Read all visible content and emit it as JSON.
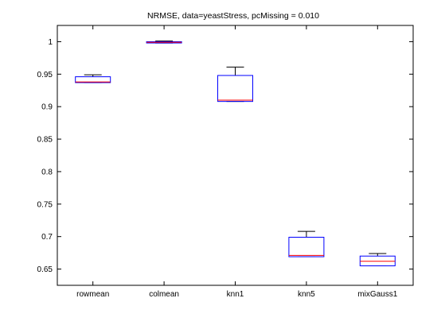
{
  "chart_data": {
    "type": "box",
    "title": "NRMSE, data=yeastStress, pcMissing = 0.010",
    "xlabel": "",
    "ylabel": "",
    "ylim": [
      0.625,
      1.025
    ],
    "yticks": [
      0.65,
      0.7,
      0.75,
      0.8,
      0.85,
      0.9,
      0.95,
      1
    ],
    "ytick_labels": [
      "0.65",
      "0.7",
      "0.75",
      "0.8",
      "0.85",
      "0.9",
      "0.95",
      "1"
    ],
    "categories": [
      "rowmean",
      "colmean",
      "knn1",
      "knn5",
      "mixGauss1"
    ],
    "boxes": [
      {
        "whisker_low": 0.937,
        "q1": 0.937,
        "median": 0.938,
        "q3": 0.946,
        "whisker_high": 0.949
      },
      {
        "whisker_low": 0.998,
        "q1": 0.998,
        "median": 0.999,
        "q3": 1.0,
        "whisker_high": 1.001
      },
      {
        "whisker_low": 0.908,
        "q1": 0.908,
        "median": 0.91,
        "q3": 0.948,
        "whisker_high": 0.961
      },
      {
        "whisker_low": 0.669,
        "q1": 0.669,
        "median": 0.671,
        "q3": 0.699,
        "whisker_high": 0.708
      },
      {
        "whisker_low": 0.655,
        "q1": 0.655,
        "median": 0.662,
        "q3": 0.67,
        "whisker_high": 0.674
      }
    ],
    "grid": false,
    "colors": {
      "box": "#0000ff",
      "median": "#ff0000",
      "whisker": "#000000",
      "axes": "#000000"
    }
  }
}
